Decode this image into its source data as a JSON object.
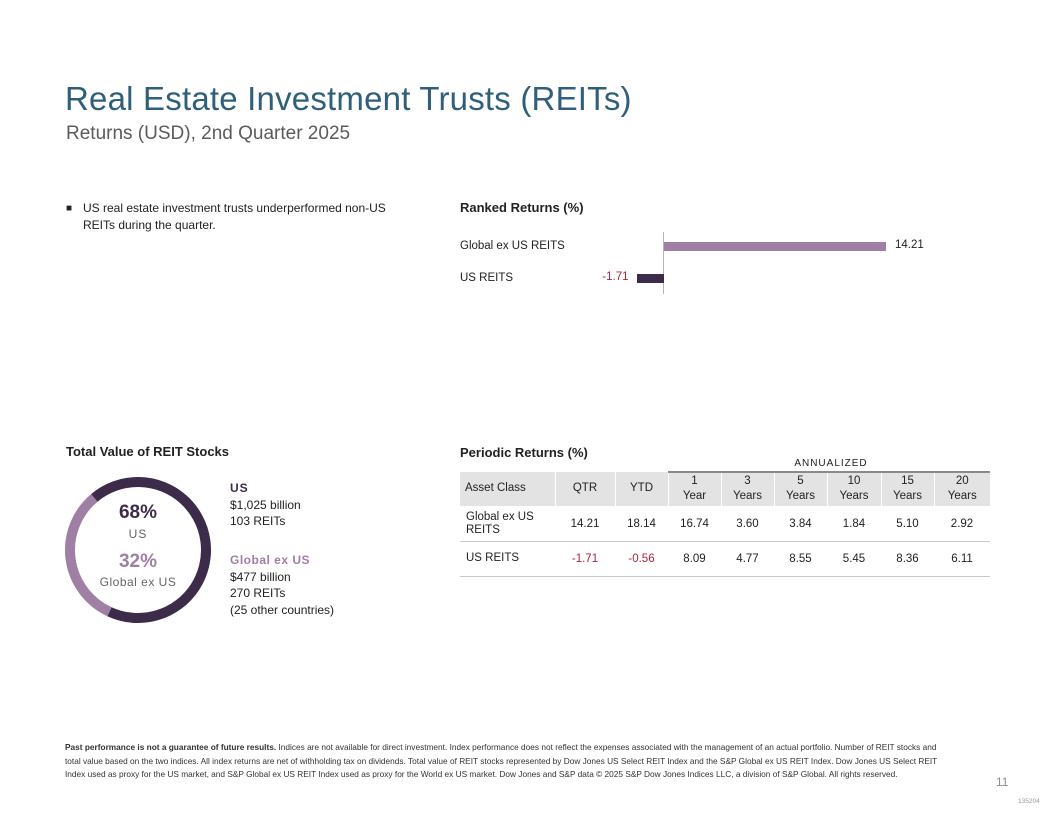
{
  "header": {
    "title": "Real Estate Investment Trusts (REITs)",
    "subtitle": "Returns (USD), 2nd Quarter 2025"
  },
  "bullet": {
    "text": "US real estate investment trusts underperformed non-US REITs during the quarter."
  },
  "colors": {
    "title": "#2f5f7a",
    "us": "#3d2b4a",
    "global_ex_us": "#a07fa4",
    "negative": "#b0243a"
  },
  "ranked_returns": {
    "heading": "Ranked Returns (%)",
    "chart_data": {
      "type": "bar",
      "orientation": "horizontal",
      "categories": [
        "Global ex US REITS",
        "US REITS"
      ],
      "values": [
        14.21,
        -1.71
      ],
      "value_labels": [
        "14.21",
        "-1.71"
      ],
      "title": "Ranked Returns (%)"
    }
  },
  "total_value": {
    "heading": "Total Value of REIT Stocks",
    "chart_data": {
      "type": "pie",
      "categories": [
        "US",
        "Global ex US"
      ],
      "values": [
        68,
        32
      ]
    },
    "us": {
      "pct": "68%",
      "label": "US",
      "name": "US",
      "value": "$1,025 billion",
      "count": "103 REITs"
    },
    "global": {
      "pct": "32%",
      "label": "Global ex US",
      "name": "Global ex US",
      "value": "$477 billion",
      "count": "270 REITs",
      "countries": "(25 other countries)"
    }
  },
  "periodic_returns": {
    "heading": "Periodic Returns (%)",
    "annualized_label": "ANNUALIZED",
    "columns": [
      {
        "l1": "Asset Class",
        "l2": ""
      },
      {
        "l1": "QTR",
        "l2": ""
      },
      {
        "l1": "YTD",
        "l2": ""
      },
      {
        "l1": "1",
        "l2": "Year"
      },
      {
        "l1": "3",
        "l2": "Years"
      },
      {
        "l1": "5",
        "l2": "Years"
      },
      {
        "l1": "10",
        "l2": "Years"
      },
      {
        "l1": "15",
        "l2": "Years"
      },
      {
        "l1": "20",
        "l2": "Years"
      }
    ],
    "rows": [
      {
        "name_l1": "Global ex US",
        "name_l2": "REITS",
        "values": [
          "14.21",
          "18.14",
          "16.74",
          "3.60",
          "3.84",
          "1.84",
          "5.10",
          "2.92"
        ]
      },
      {
        "name_l1": "US REITS",
        "name_l2": "",
        "values": [
          "-1.71",
          "-0.56",
          "8.09",
          "4.77",
          "8.55",
          "5.45",
          "8.36",
          "6.11"
        ]
      }
    ]
  },
  "footer": {
    "bold": "Past performance is not a guarantee of future results.",
    "text": " Indices are not available for direct investment. Index performance does not reflect the expenses associated with the management of an actual portfolio. Number of REIT stocks and total value based on the two indices. All index returns are net of withholding tax on dividends. Total value of REIT stocks represented by Dow Jones US Select REIT Index and the S&P Global ex US REIT Index. Dow Jones US Select REIT Index used as proxy for the US market, and S&P Global ex US REIT Index used as proxy for the World ex US market. Dow Jones and S&P data © 2025 S&P Dow Jones Indices LLC, a division of S&P Global. All rights reserved.",
    "page_number": "11",
    "code": "135204"
  }
}
